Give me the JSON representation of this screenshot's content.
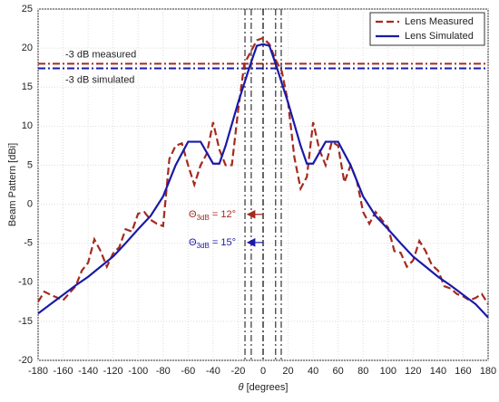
{
  "chart_data": {
    "type": "line",
    "y_label": "Beam Pattern [dBi]",
    "x_label": {
      "symbol": "θ",
      "rest": " [degrees]"
    },
    "xlim": [
      -180,
      180
    ],
    "ylim": [
      -20,
      25
    ],
    "xticks": [
      -180,
      -160,
      -140,
      -120,
      -100,
      -80,
      -60,
      -40,
      -20,
      0,
      20,
      40,
      60,
      80,
      100,
      120,
      140,
      160,
      180
    ],
    "yticks": [
      -20,
      -15,
      -10,
      -5,
      0,
      5,
      10,
      15,
      20,
      25
    ],
    "grid": true,
    "legend": "upper right",
    "series": [
      {
        "name": "Lens Measured",
        "color": "#a52a1e",
        "style": "dashed",
        "x": [
          -180,
          -175,
          -170,
          -160,
          -150,
          -145,
          -140,
          -135,
          -130,
          -125,
          -120,
          -115,
          -110,
          -105,
          -100,
          -95,
          -90,
          -85,
          -80,
          -75,
          -70,
          -65,
          -60,
          -55,
          -50,
          -45,
          -40,
          -35,
          -30,
          -25,
          -20,
          -15,
          -10,
          -5,
          0,
          5,
          10,
          15,
          20,
          25,
          30,
          35,
          40,
          45,
          50,
          55,
          60,
          65,
          70,
          75,
          80,
          85,
          90,
          100,
          105,
          110,
          115,
          120,
          125,
          130,
          135,
          140,
          145,
          150,
          155,
          160,
          165,
          170,
          175,
          180
        ],
        "values": [
          -12.5,
          -11.2,
          -11.6,
          -12.3,
          -10.5,
          -8.5,
          -7.5,
          -4.5,
          -6,
          -8,
          -6.3,
          -5.5,
          -3.2,
          -3.5,
          -1.2,
          -1,
          -2,
          -2.5,
          -2.8,
          5.8,
          7.5,
          7.8,
          5,
          2.5,
          5,
          6.5,
          10.5,
          7,
          5,
          5,
          12,
          18,
          19.5,
          21,
          21.3,
          20.5,
          18.5,
          17,
          13,
          6,
          2,
          3.5,
          10.5,
          7,
          5,
          8,
          7.5,
          2.8,
          5,
          3,
          -1,
          -2.5,
          -1,
          -3,
          -6,
          -6.2,
          -8,
          -7.2,
          -4.7,
          -6,
          -7.8,
          -8.5,
          -10.5,
          -10.8,
          -11.5,
          -11.8,
          -12.3,
          -12,
          -11.5,
          -12.8
        ]
      },
      {
        "name": "Lens Simulated",
        "color": "#1a1aa8",
        "style": "solid",
        "x": [
          -180,
          -170,
          -160,
          -150,
          -140,
          -130,
          -120,
          -110,
          -100,
          -90,
          -80,
          -70,
          -60,
          -50,
          -40,
          -35,
          -30,
          -20,
          -10,
          -5,
          0,
          5,
          10,
          20,
          30,
          35,
          40,
          50,
          60,
          70,
          80,
          90,
          100,
          110,
          120,
          130,
          140,
          150,
          160,
          170,
          180
        ],
        "values": [
          -14,
          -12.8,
          -11.6,
          -10.4,
          -9.3,
          -8,
          -6.7,
          -5,
          -3.2,
          -1.5,
          1,
          5,
          8,
          8,
          5.2,
          5.2,
          7.5,
          13,
          18,
          20.3,
          20.5,
          20.3,
          18,
          13,
          7.5,
          5.2,
          5.2,
          8,
          8,
          5,
          1,
          -1.5,
          -3.2,
          -5,
          -6.7,
          -8,
          -9.3,
          -10.4,
          -11.6,
          -12.8,
          -14.5
        ]
      }
    ],
    "hlines": [
      {
        "value": 18,
        "label": "-3 dB measured",
        "color": "#a52a1e"
      },
      {
        "value": 17.4,
        "label": "-3 dB simulated",
        "color": "#1a1aa8"
      }
    ],
    "vlines": [
      {
        "value": -14.5,
        "color": "#333"
      },
      {
        "value": -9.5,
        "color": "#333"
      },
      {
        "value": 0,
        "color": "#000"
      },
      {
        "value": 10,
        "color": "#333"
      },
      {
        "value": 14.5,
        "color": "#333"
      }
    ],
    "beamwidths": [
      {
        "symbol": "Θ",
        "sub": "3dB",
        "rest": " = 12°",
        "color": "#a52a1e",
        "y": -1.3
      },
      {
        "symbol": "Θ",
        "sub": "3dB",
        "rest": " = 15°",
        "color": "#1a1aa8",
        "y": -4.9
      }
    ]
  }
}
